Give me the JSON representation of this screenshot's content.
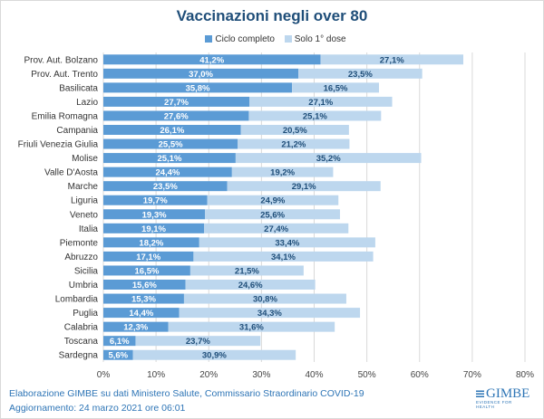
{
  "chart_data": {
    "type": "bar",
    "orientation": "horizontal",
    "stacked": true,
    "title": "Vaccinazioni negli over 80",
    "categories": [
      "Prov. Aut. Bolzano",
      "Prov. Aut. Trento",
      "Basilicata",
      "Lazio",
      "Emilia Romagna",
      "Campania",
      "Friuli Venezia Giulia",
      "Molise",
      "Valle D'Aosta",
      "Marche",
      "Liguria",
      "Veneto",
      "Italia",
      "Piemonte",
      "Abruzzo",
      "Sicilia",
      "Umbria",
      "Lombardia",
      "Puglia",
      "Calabria",
      "Toscana",
      "Sardegna"
    ],
    "series": [
      {
        "name": "Ciclo completo",
        "color": "#5b9bd5",
        "values": [
          41.2,
          37.0,
          35.8,
          27.7,
          27.6,
          26.1,
          25.5,
          25.1,
          24.4,
          23.5,
          19.7,
          19.3,
          19.1,
          18.2,
          17.1,
          16.5,
          15.6,
          15.3,
          14.4,
          12.3,
          6.1,
          5.6
        ],
        "labels": [
          "41,2%",
          "37,0%",
          "35,8%",
          "27,7%",
          "27,6%",
          "26,1%",
          "25,5%",
          "25,1%",
          "24,4%",
          "23,5%",
          "19,7%",
          "19,3%",
          "19,1%",
          "18,2%",
          "17,1%",
          "16,5%",
          "15,6%",
          "15,3%",
          "14,4%",
          "12,3%",
          "6,1%",
          "5,6%"
        ]
      },
      {
        "name": "Solo 1° dose",
        "color": "#bdd7ee",
        "values": [
          27.1,
          23.5,
          16.5,
          27.1,
          25.1,
          20.5,
          21.2,
          35.2,
          19.2,
          29.1,
          24.9,
          25.6,
          27.4,
          33.4,
          34.1,
          21.5,
          24.6,
          30.8,
          34.3,
          31.6,
          23.7,
          30.9
        ],
        "labels": [
          "27,1%",
          "23,5%",
          "16,5%",
          "27,1%",
          "25,1%",
          "20,5%",
          "21,2%",
          "35,2%",
          "19,2%",
          "29,1%",
          "24,9%",
          "25,6%",
          "27,4%",
          "33,4%",
          "34,1%",
          "21,5%",
          "24,6%",
          "30,8%",
          "34,3%",
          "31,6%",
          "23,7%",
          "30,9%"
        ]
      }
    ],
    "xlim": [
      0,
      80
    ],
    "xticks": [
      "0%",
      "10%",
      "20%",
      "30%",
      "40%",
      "50%",
      "60%",
      "70%",
      "80%"
    ],
    "grid": true,
    "legend_position": "top-center"
  },
  "footer": {
    "source": "Elaborazione GIMBE su dati Ministero Salute, Commissario Straordinario  COVID-19",
    "updated": "Aggiornamento:  24 marzo 2021 ore 06:01"
  },
  "logo": {
    "name": "GIMBE",
    "tagline": "EVIDENCE FOR HEALTH"
  }
}
